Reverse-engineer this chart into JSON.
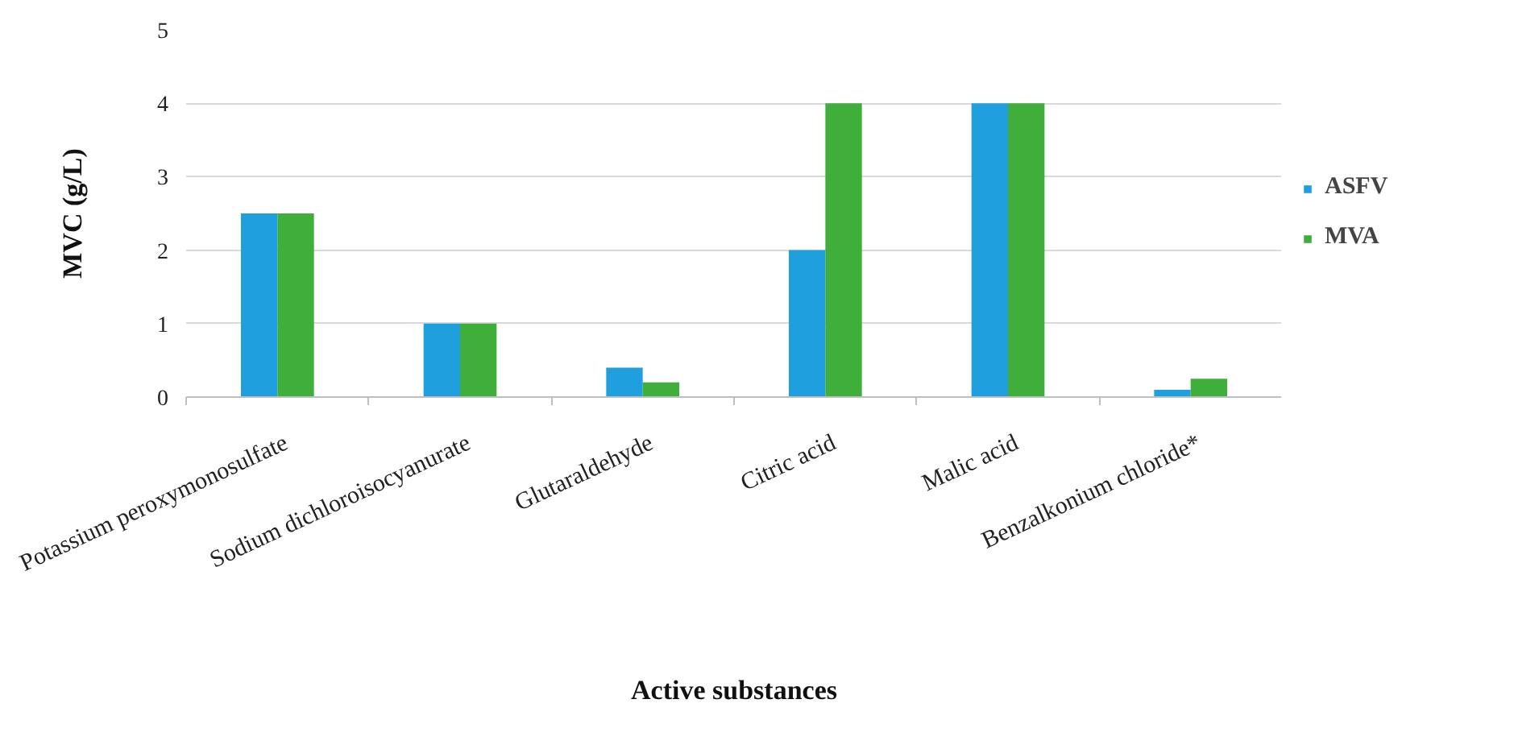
{
  "chart_data": {
    "type": "bar",
    "xlabel": "Active substances",
    "ylabel": "MVC (g/L)",
    "categories": [
      "Potassium peroxymonosulfate",
      "Sodium dichloroisocyanurate",
      "Glutaraldehyde",
      "Citric acid",
      "Malic acid",
      "Benzalkonium chloride*"
    ],
    "series": [
      {
        "name": "ASFV",
        "color": "#1f9fde",
        "values": [
          2.5,
          1,
          0.4,
          2,
          4,
          0.1
        ]
      },
      {
        "name": "MVA",
        "color": "#3fae3a",
        "values": [
          2.5,
          1,
          0.2,
          4,
          4,
          0.25
        ]
      }
    ],
    "ylim": [
      0,
      5
    ],
    "yticks": [
      0,
      1,
      2,
      3,
      4,
      5
    ],
    "grid": "y",
    "legend": "right"
  }
}
